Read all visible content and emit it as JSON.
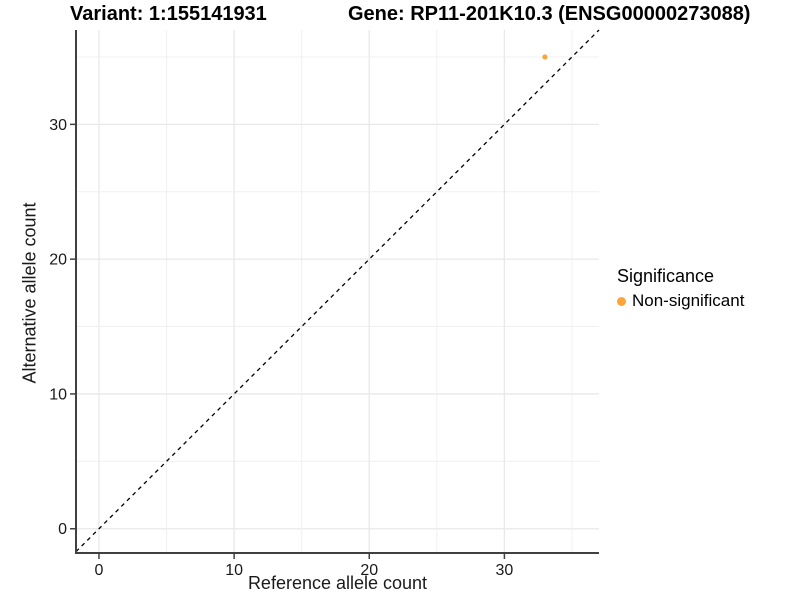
{
  "figure": {
    "title_variant": "Variant: 1:155141931",
    "title_gene": "Gene: RP11-201K10.3 (ENSG00000273088)",
    "background_color": "#FFFFFF"
  },
  "chart_data": {
    "type": "scatter",
    "title": "Variant: 1:155141931 — Gene: RP11-201K10.3 (ENSG00000273088)",
    "xlabel": "Reference allele count",
    "ylabel": "Alternative allele count",
    "xlim": [
      -1.7,
      37
    ],
    "ylim": [
      -1.8,
      37
    ],
    "x_ticks": [
      0,
      10,
      20,
      30
    ],
    "y_ticks": [
      0,
      10,
      20,
      30
    ],
    "gridline_values": [
      0,
      5,
      10,
      15,
      20,
      25,
      30,
      35
    ],
    "grid": true,
    "grid_major_color": "#E8E8E8",
    "grid_minor_color": "#F0F0F0",
    "axis_line_color": "#404040",
    "tick_text_color": "#1a1a1a",
    "series": [
      {
        "name": "Non-significant",
        "color": "#FAA43A",
        "points": [
          {
            "x": 33,
            "y": 35
          }
        ]
      }
    ],
    "reference_line": {
      "type": "identity y=x",
      "style": "dashed",
      "color": "#000000"
    },
    "legend": {
      "title": "Significance",
      "position": "right",
      "entries": [
        {
          "label": "Non-significant",
          "color": "#FAA43A"
        }
      ]
    }
  }
}
